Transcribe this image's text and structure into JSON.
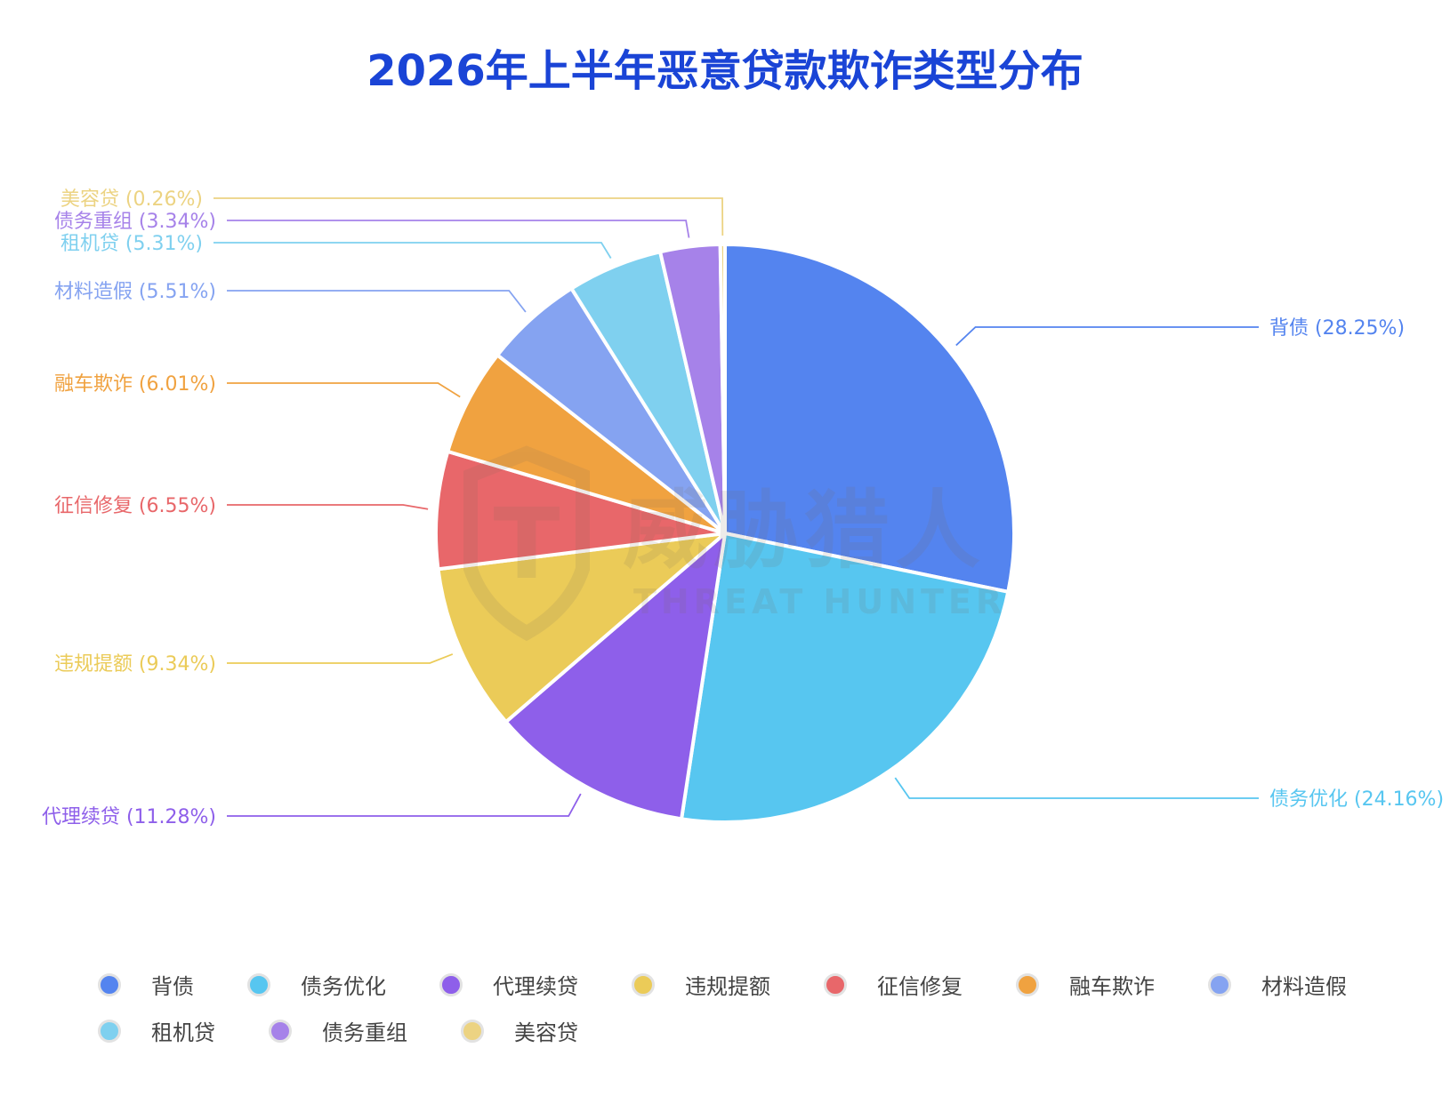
{
  "chart_data": {
    "type": "pie",
    "title": "2026年上半年恶意贷款欺诈类型分布",
    "slices": [
      {
        "name": "背债",
        "value": 28.25,
        "label": "背债 (28.25%)",
        "color": "#5484ef"
      },
      {
        "name": "债务优化",
        "value": 24.16,
        "label": "债务优化 (24.16%)",
        "color": "#57c6f0"
      },
      {
        "name": "代理续贷",
        "value": 11.28,
        "label": "代理续贷 (11.28%)",
        "color": "#8e5fea"
      },
      {
        "name": "违规提额",
        "value": 9.34,
        "label": "违规提额 (9.34%)",
        "color": "#ebcb58"
      },
      {
        "name": "征信修复",
        "value": 6.55,
        "label": "征信修复 (6.55%)",
        "color": "#e8676a"
      },
      {
        "name": "融车欺诈",
        "value": 6.01,
        "label": "融车欺诈 (6.01%)",
        "color": "#f0a240"
      },
      {
        "name": "材料造假",
        "value": 5.51,
        "label": "材料造假 (5.51%)",
        "color": "#85a3f1"
      },
      {
        "name": "租机贷",
        "value": 5.31,
        "label": "租机贷 (5.31%)",
        "color": "#7fd0ef"
      },
      {
        "name": "债务重组",
        "value": 3.34,
        "label": "债务重组 (3.34%)",
        "color": "#a682e9"
      },
      {
        "name": "美容贷",
        "value": 0.26,
        "label": "美容贷 (0.26%)",
        "color": "#ecd382"
      }
    ],
    "legend_position": "bottom"
  },
  "watermark": {
    "cn": "威胁猎人",
    "en": "THREAT HUNTER"
  }
}
